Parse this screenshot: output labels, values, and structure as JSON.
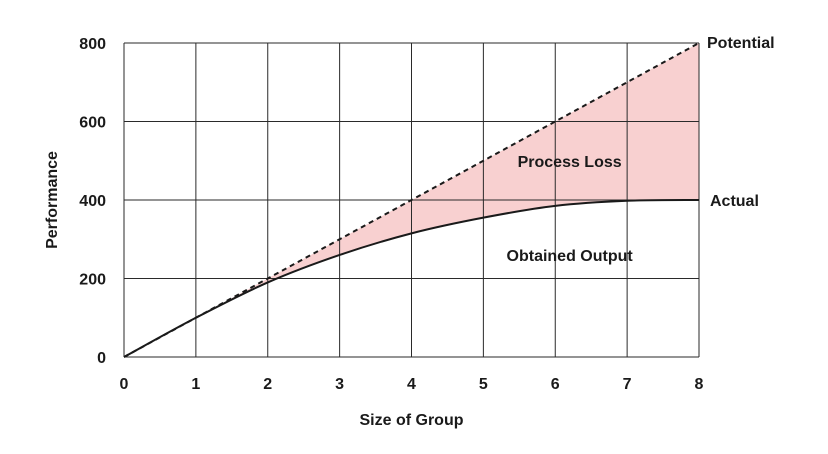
{
  "chart_data": {
    "type": "line",
    "title": "",
    "xlabel": "Size of Group",
    "ylabel": "Performance",
    "xlim": [
      0,
      8
    ],
    "ylim": [
      0,
      800
    ],
    "x_ticks": [
      "0",
      "1",
      "2",
      "3",
      "4",
      "5",
      "6",
      "7",
      "8"
    ],
    "y_ticks": [
      "0",
      "200",
      "400",
      "600",
      "800"
    ],
    "grid": true,
    "series": [
      {
        "name": "Potential",
        "style": "dashed",
        "color": "#1a1a1a",
        "x": [
          0,
          1,
          2,
          3,
          4,
          5,
          6,
          7,
          8
        ],
        "y": [
          0,
          100,
          200,
          300,
          400,
          500,
          600,
          700,
          800
        ]
      },
      {
        "name": "Actual",
        "style": "solid",
        "color": "#1a1a1a",
        "x": [
          0,
          1,
          2,
          3,
          4,
          5,
          6,
          7,
          8
        ],
        "y": [
          0,
          100,
          190,
          260,
          315,
          355,
          385,
          398,
          400
        ]
      }
    ],
    "shaded_region": {
      "between": [
        "Potential",
        "Actual"
      ],
      "color": "#f8d0d0"
    },
    "annotations": [
      {
        "text": "Process Loss",
        "x": 6.2,
        "y": 500
      },
      {
        "text": "Obtained Output",
        "x": 6.2,
        "y": 260
      }
    ]
  }
}
